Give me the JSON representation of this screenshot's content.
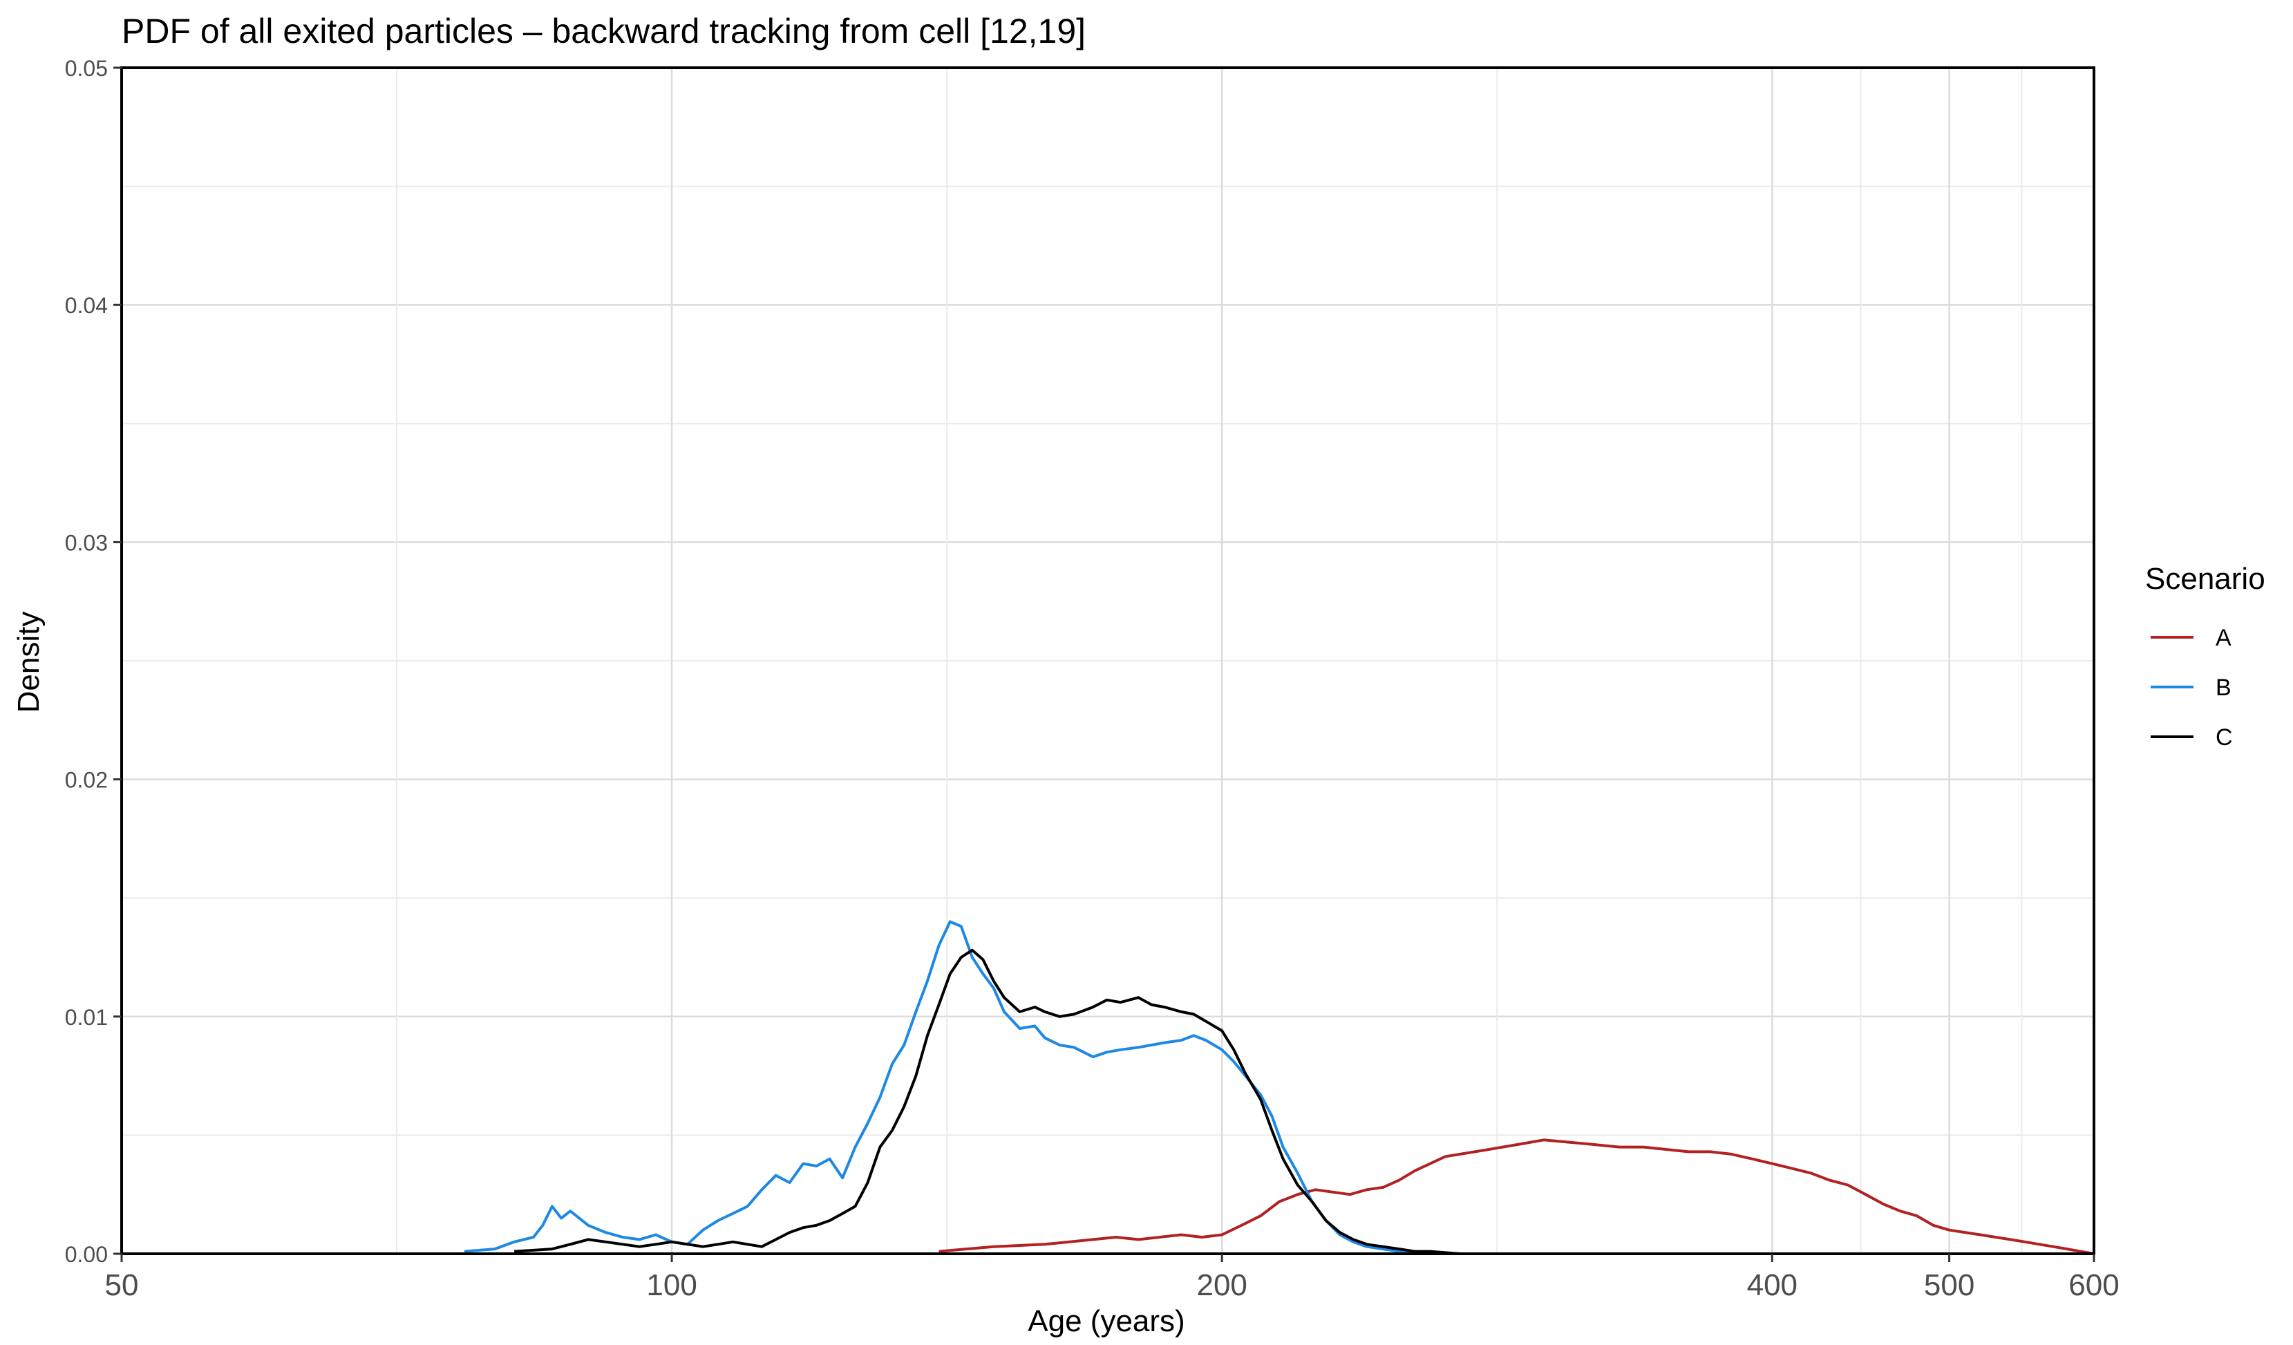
{
  "chart_data": {
    "type": "line",
    "title": "PDF of all exited particles – backward tracking from cell [12,19]",
    "xlabel": "Age (years)",
    "ylabel": "Density",
    "x_scale": "log10",
    "xlim": [
      50,
      600
    ],
    "ylim": [
      0,
      0.05
    ],
    "x_ticks": [
      50,
      100,
      200,
      400,
      500,
      600
    ],
    "x_tick_labels": [
      "50",
      "100",
      "200",
      "400",
      "500",
      "600"
    ],
    "y_ticks": [
      0,
      0.01,
      0.02,
      0.03,
      0.04,
      0.05
    ],
    "y_tick_labels": [
      "0.00",
      "0.01",
      "0.02",
      "0.03",
      "0.04",
      "0.05"
    ],
    "grid": true,
    "legend": {
      "title": "Scenario",
      "placement": "right"
    },
    "series": [
      {
        "name": "A",
        "color": "#b22222",
        "x": [
          140,
          150,
          160,
          170,
          175,
          180,
          190,
          195,
          200,
          205,
          210,
          215,
          220,
          225,
          230,
          235,
          240,
          245,
          250,
          255,
          260,
          265,
          270,
          275,
          280,
          290,
          300,
          310,
          320,
          330,
          340,
          350,
          360,
          370,
          380,
          390,
          400,
          410,
          420,
          430,
          440,
          450,
          460,
          470,
          480,
          490,
          500,
          510,
          520,
          530,
          540,
          550,
          560,
          570,
          580,
          590,
          600
        ],
        "y": [
          0.0001,
          0.0003,
          0.0004,
          0.0006,
          0.0007,
          0.0006,
          0.0008,
          0.0007,
          0.0008,
          0.0012,
          0.0016,
          0.0022,
          0.0025,
          0.0027,
          0.0026,
          0.0025,
          0.0027,
          0.0028,
          0.0031,
          0.0035,
          0.0038,
          0.0041,
          0.0042,
          0.0043,
          0.0044,
          0.0046,
          0.0048,
          0.0047,
          0.0046,
          0.0045,
          0.0045,
          0.0044,
          0.0043,
          0.0043,
          0.0042,
          0.004,
          0.0038,
          0.0036,
          0.0034,
          0.0031,
          0.0029,
          0.0025,
          0.0021,
          0.0018,
          0.0016,
          0.0012,
          0.001,
          0.0009,
          0.0008,
          0.0007,
          0.0006,
          0.0005,
          0.0004,
          0.0003,
          0.0002,
          0.0001,
          0.0
        ]
      },
      {
        "name": "B",
        "color": "#1e88e5",
        "x": [
          77,
          80,
          82,
          84,
          85,
          86,
          87,
          88,
          90,
          92,
          94,
          96,
          98,
          100,
          102,
          104,
          106,
          108,
          110,
          112,
          114,
          116,
          118,
          120,
          122,
          124,
          126,
          128,
          130,
          132,
          134,
          136,
          138,
          140,
          142,
          144,
          146,
          148,
          150,
          152,
          155,
          158,
          160,
          163,
          166,
          170,
          173,
          176,
          180,
          183,
          186,
          190,
          193,
          196,
          200,
          203,
          206,
          210,
          213,
          216,
          220,
          224,
          228,
          232,
          236,
          240,
          245,
          250,
          255,
          260,
          265,
          270
        ],
        "y": [
          0.0001,
          0.0002,
          0.0005,
          0.0007,
          0.0012,
          0.002,
          0.0015,
          0.0018,
          0.0012,
          0.0009,
          0.0007,
          0.0006,
          0.0008,
          0.0005,
          0.0004,
          0.001,
          0.0014,
          0.0017,
          0.002,
          0.0027,
          0.0033,
          0.003,
          0.0038,
          0.0037,
          0.004,
          0.0032,
          0.0045,
          0.0055,
          0.0066,
          0.008,
          0.0088,
          0.0102,
          0.0115,
          0.013,
          0.014,
          0.0138,
          0.0125,
          0.0118,
          0.0112,
          0.0102,
          0.0095,
          0.0096,
          0.0091,
          0.0088,
          0.0087,
          0.0083,
          0.0085,
          0.0086,
          0.0087,
          0.0088,
          0.0089,
          0.009,
          0.0092,
          0.009,
          0.0086,
          0.0081,
          0.0075,
          0.0067,
          0.0058,
          0.0045,
          0.0034,
          0.0022,
          0.0014,
          0.0008,
          0.0005,
          0.0003,
          0.0002,
          0.0001,
          0.0001,
          0.0,
          0.0,
          0.0
        ]
      },
      {
        "name": "C",
        "color": "#000000",
        "x": [
          82,
          86,
          88,
          90,
          92,
          94,
          96,
          98,
          100,
          102,
          104,
          106,
          108,
          110,
          112,
          114,
          116,
          118,
          120,
          122,
          124,
          126,
          128,
          130,
          132,
          134,
          136,
          138,
          140,
          142,
          144,
          146,
          148,
          150,
          152,
          155,
          158,
          160,
          163,
          166,
          170,
          173,
          176,
          180,
          183,
          186,
          190,
          193,
          196,
          200,
          203,
          206,
          210,
          213,
          216,
          220,
          224,
          228,
          232,
          236,
          240,
          245,
          250,
          255,
          260,
          270,
          280,
          290
        ],
        "y": [
          0.0001,
          0.0002,
          0.0004,
          0.0006,
          0.0005,
          0.0004,
          0.0003,
          0.0004,
          0.0005,
          0.0004,
          0.0003,
          0.0004,
          0.0005,
          0.0004,
          0.0003,
          0.0006,
          0.0009,
          0.0011,
          0.0012,
          0.0014,
          0.0017,
          0.002,
          0.003,
          0.0045,
          0.0052,
          0.0062,
          0.0075,
          0.0092,
          0.0105,
          0.0118,
          0.0125,
          0.0128,
          0.0124,
          0.0115,
          0.0108,
          0.0102,
          0.0104,
          0.0102,
          0.01,
          0.0101,
          0.0104,
          0.0107,
          0.0106,
          0.0108,
          0.0105,
          0.0104,
          0.0102,
          0.0101,
          0.0098,
          0.0094,
          0.0086,
          0.0076,
          0.0065,
          0.0052,
          0.004,
          0.0029,
          0.0022,
          0.0014,
          0.0009,
          0.0006,
          0.0004,
          0.0003,
          0.0002,
          0.0001,
          0.0001,
          0.0,
          0.0,
          0.0
        ]
      }
    ]
  }
}
